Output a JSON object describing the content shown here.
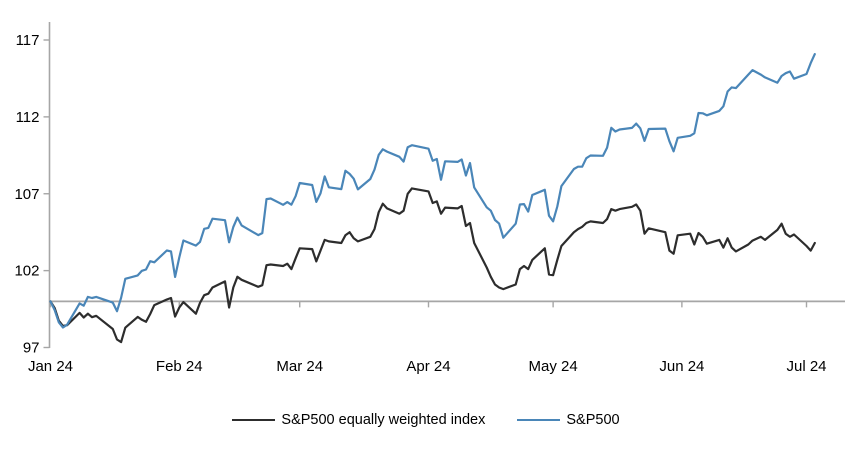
{
  "chart_data": {
    "type": "line",
    "title": "",
    "xlabel": "",
    "ylabel": "",
    "grid": "off",
    "legend_position": "bottom-center",
    "axis_color": "#a6a6a6",
    "text_color": "#000000",
    "baseline_value": 100,
    "y_axis": {
      "ticks": [
        97,
        102,
        107,
        112,
        117
      ],
      "ylim": [
        97,
        117
      ]
    },
    "x_axis": {
      "tick_labels": [
        "Jan 24",
        "Feb 24",
        "Mar 24",
        "Apr 24",
        "May 24",
        "Jun 24",
        "Jul 24"
      ],
      "tick_dates": [
        "2024-01-01",
        "2024-02-01",
        "2024-03-01",
        "2024-04-01",
        "2024-05-01",
        "2024-06-01",
        "2024-07-01"
      ]
    },
    "dates": [
      "2024-01-01",
      "2024-01-02",
      "2024-01-03",
      "2024-01-04",
      "2024-01-05",
      "2024-01-08",
      "2024-01-09",
      "2024-01-10",
      "2024-01-11",
      "2024-01-12",
      "2024-01-16",
      "2024-01-17",
      "2024-01-18",
      "2024-01-19",
      "2024-01-22",
      "2024-01-23",
      "2024-01-24",
      "2024-01-25",
      "2024-01-26",
      "2024-01-29",
      "2024-01-30",
      "2024-01-31",
      "2024-02-01",
      "2024-02-02",
      "2024-02-05",
      "2024-02-06",
      "2024-02-07",
      "2024-02-08",
      "2024-02-09",
      "2024-02-12",
      "2024-02-13",
      "2024-02-14",
      "2024-02-15",
      "2024-02-16",
      "2024-02-20",
      "2024-02-21",
      "2024-02-22",
      "2024-02-23",
      "2024-02-26",
      "2024-02-27",
      "2024-02-28",
      "2024-02-29",
      "2024-03-01",
      "2024-03-04",
      "2024-03-05",
      "2024-03-06",
      "2024-03-07",
      "2024-03-08",
      "2024-03-11",
      "2024-03-12",
      "2024-03-13",
      "2024-03-14",
      "2024-03-15",
      "2024-03-18",
      "2024-03-19",
      "2024-03-20",
      "2024-03-21",
      "2024-03-22",
      "2024-03-25",
      "2024-03-26",
      "2024-03-27",
      "2024-03-28",
      "2024-04-01",
      "2024-04-02",
      "2024-04-03",
      "2024-04-04",
      "2024-04-05",
      "2024-04-08",
      "2024-04-09",
      "2024-04-10",
      "2024-04-11",
      "2024-04-12",
      "2024-04-15",
      "2024-04-16",
      "2024-04-17",
      "2024-04-18",
      "2024-04-19",
      "2024-04-22",
      "2024-04-23",
      "2024-04-24",
      "2024-04-25",
      "2024-04-26",
      "2024-04-29",
      "2024-04-30",
      "2024-05-01",
      "2024-05-02",
      "2024-05-03",
      "2024-05-06",
      "2024-05-07",
      "2024-05-08",
      "2024-05-09",
      "2024-05-10",
      "2024-05-13",
      "2024-05-14",
      "2024-05-15",
      "2024-05-16",
      "2024-05-17",
      "2024-05-20",
      "2024-05-21",
      "2024-05-22",
      "2024-05-23",
      "2024-05-24",
      "2024-05-28",
      "2024-05-29",
      "2024-05-30",
      "2024-05-31",
      "2024-06-03",
      "2024-06-04",
      "2024-06-05",
      "2024-06-06",
      "2024-06-07",
      "2024-06-10",
      "2024-06-11",
      "2024-06-12",
      "2024-06-13",
      "2024-06-14",
      "2024-06-17",
      "2024-06-18",
      "2024-06-20",
      "2024-06-21",
      "2024-06-24",
      "2024-06-25",
      "2024-06-26",
      "2024-06-27",
      "2024-06-28",
      "2024-07-01",
      "2024-07-02",
      "2024-07-03"
    ],
    "series": [
      {
        "name": "S&P500 equally weighted index",
        "color": "#2d2d2d",
        "values": [
          100.0,
          99.56,
          98.74,
          98.4,
          98.45,
          99.25,
          98.95,
          99.2,
          98.97,
          99.06,
          98.2,
          97.52,
          97.35,
          98.29,
          98.99,
          98.8,
          98.67,
          99.18,
          99.76,
          100.12,
          100.22,
          99.01,
          99.6,
          99.95,
          99.2,
          99.9,
          100.4,
          100.5,
          100.9,
          101.3,
          99.6,
          100.9,
          101.6,
          101.4,
          100.95,
          101.05,
          102.35,
          102.4,
          102.3,
          102.45,
          102.1,
          102.8,
          103.45,
          103.4,
          102.6,
          103.3,
          104.0,
          103.9,
          103.8,
          104.3,
          104.5,
          104.1,
          103.9,
          104.2,
          104.7,
          105.8,
          106.35,
          106.05,
          105.7,
          105.9,
          107.0,
          107.35,
          107.15,
          106.4,
          106.5,
          105.7,
          106.1,
          106.05,
          106.2,
          104.9,
          105.1,
          103.8,
          102.2,
          101.6,
          101.1,
          100.9,
          100.8,
          101.1,
          102.1,
          102.3,
          102.1,
          102.7,
          103.45,
          101.75,
          101.7,
          102.7,
          103.6,
          104.5,
          104.7,
          104.85,
          105.1,
          105.2,
          105.1,
          105.35,
          106.0,
          105.9,
          106.0,
          106.15,
          106.3,
          105.9,
          104.4,
          104.75,
          104.5,
          103.3,
          103.1,
          104.3,
          104.4,
          103.7,
          104.45,
          104.2,
          103.75,
          104.0,
          103.5,
          104.1,
          103.5,
          103.25,
          103.7,
          103.95,
          104.2,
          104.0,
          104.65,
          105.05,
          104.4,
          104.2,
          104.35,
          103.6,
          103.3,
          103.8
        ]
      },
      {
        "name": "S&P500",
        "color": "#4a86b8",
        "values": [
          100.0,
          99.43,
          98.64,
          98.3,
          98.48,
          99.87,
          99.72,
          100.29,
          100.22,
          100.29,
          99.92,
          99.36,
          100.23,
          101.47,
          101.69,
          101.99,
          102.07,
          102.61,
          102.54,
          103.31,
          103.25,
          101.59,
          102.86,
          103.96,
          103.63,
          103.87,
          104.72,
          104.78,
          105.38,
          105.28,
          103.84,
          104.84,
          105.45,
          104.94,
          104.31,
          104.44,
          106.65,
          106.69,
          106.28,
          106.46,
          106.29,
          106.84,
          107.7,
          107.57,
          106.47,
          107.02,
          108.13,
          107.42,
          107.3,
          108.5,
          108.29,
          107.98,
          107.28,
          107.96,
          108.57,
          109.53,
          109.89,
          109.74,
          109.4,
          109.09,
          110.03,
          110.16,
          109.93,
          109.14,
          109.26,
          107.91,
          109.11,
          109.07,
          109.23,
          108.19,
          109.0,
          107.41,
          106.12,
          105.9,
          105.29,
          105.06,
          104.14,
          105.05,
          106.3,
          106.33,
          105.84,
          106.92,
          107.26,
          105.57,
          105.21,
          106.17,
          107.5,
          108.61,
          108.76,
          108.76,
          109.31,
          109.49,
          109.47,
          110.0,
          111.29,
          111.05,
          111.18,
          111.28,
          111.56,
          111.26,
          110.44,
          111.21,
          111.24,
          110.42,
          109.76,
          110.64,
          110.77,
          110.93,
          112.25,
          112.23,
          112.1,
          112.39,
          112.69,
          113.65,
          113.92,
          113.87,
          114.75,
          115.04,
          114.75,
          114.57,
          114.22,
          114.66,
          114.84,
          114.95,
          114.48,
          114.79,
          115.5,
          116.08
        ]
      }
    ]
  }
}
